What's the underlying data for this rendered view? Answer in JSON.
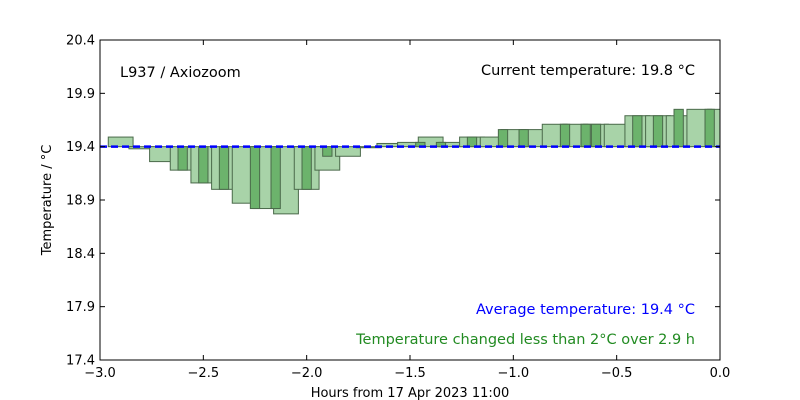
{
  "chart_data": {
    "type": "bar",
    "title": "L937 / Axiozoom",
    "current_label": "Current temperature: 19.8 °C",
    "avg_label": "Average temperature: 19.4 °C",
    "change_label": "Temperature changed less than 2°C over 2.9 h",
    "xlabel": "Hours from 17 Apr 2023 11:00",
    "ylabel": "Temperature / °C",
    "xlim": [
      -3.0,
      0.0
    ],
    "ylim": [
      17.4,
      20.4
    ],
    "xticks": [
      -3.0,
      -2.5,
      -2.0,
      -1.5,
      -1.0,
      -0.5,
      0.0
    ],
    "xtick_labels": [
      "−3.0",
      "−2.5",
      "−2.0",
      "−1.5",
      "−1.0",
      "−0.5",
      "0.0"
    ],
    "yticks": [
      17.4,
      17.9,
      18.4,
      18.9,
      19.4,
      19.9,
      20.4
    ],
    "ytick_labels": [
      "17.4",
      "17.9",
      "18.4",
      "18.9",
      "19.4",
      "19.9",
      "20.4"
    ],
    "baseline": 19.4,
    "grid": false,
    "colors": {
      "bar_fill_light": "#a8d3a8",
      "bar_fill_dark": "#6cb36c",
      "bar_edge": "#4a6a4a",
      "avg_line": "#0000ff",
      "avg_text": "#0000ff",
      "change_text": "#228b22"
    },
    "series": [
      {
        "bar_width": 0.12,
        "style": "light",
        "x": [
          -2.9,
          -2.8,
          -2.7,
          -2.6,
          -2.5,
          -2.4,
          -2.3,
          -2.2,
          -2.1,
          -2.0,
          -1.9,
          -1.8,
          -1.7,
          -1.6,
          -1.5,
          -1.4,
          -1.3,
          -1.2,
          -1.1,
          -1.0,
          -0.9,
          -0.8,
          -0.7,
          -0.6,
          -0.5,
          -0.4,
          -0.3,
          -0.2,
          -0.1,
          0.0
        ],
        "values": [
          19.49,
          19.38,
          19.26,
          19.18,
          19.06,
          19.0,
          18.87,
          18.82,
          18.77,
          19.0,
          19.18,
          19.31,
          19.39,
          19.43,
          19.44,
          19.49,
          19.44,
          19.49,
          19.49,
          19.56,
          19.56,
          19.61,
          19.61,
          19.61,
          19.61,
          19.69,
          19.69,
          19.69,
          19.75,
          19.75
        ]
      },
      {
        "bar_width": 0.045,
        "style": "dark",
        "x": [
          -2.6,
          -2.5,
          -2.4,
          -2.25,
          -2.15,
          -2.0,
          -1.9,
          -1.45,
          -1.35,
          -1.2,
          -1.05,
          -0.95,
          -0.75,
          -0.65,
          -0.6,
          -0.4,
          -0.3,
          -0.2,
          -0.05
        ],
        "values": [
          19.18,
          19.06,
          19.0,
          18.82,
          18.82,
          19.0,
          19.31,
          19.44,
          19.44,
          19.49,
          19.56,
          19.56,
          19.61,
          19.61,
          19.61,
          19.69,
          19.69,
          19.75,
          19.75
        ]
      }
    ]
  }
}
